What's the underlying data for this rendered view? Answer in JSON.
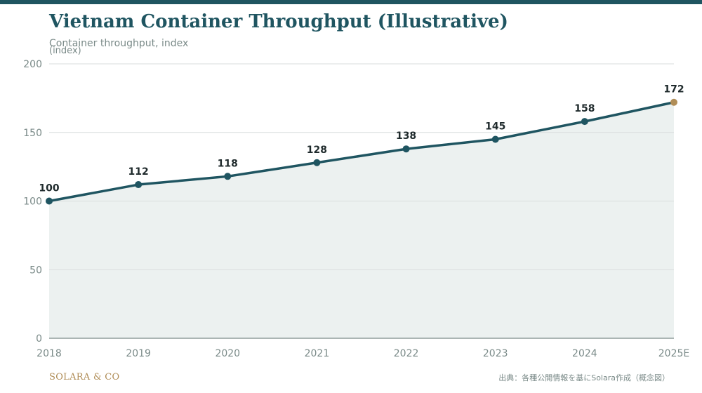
{
  "header": {
    "title": "Vietnam Container Throughput (Illustrative)",
    "subtitle": "Container throughput, index"
  },
  "footer": {
    "brand": "SOLARA & CO",
    "source": "出典：各種公開情報を基にSolara作成（概念図）"
  },
  "colors": {
    "line": "#1f5561",
    "highlight": "#b08d57",
    "area": "#ecf1f0",
    "grid": "#d9dedd",
    "axis": "#7a8a88",
    "label": "#1f2a2c"
  },
  "chart_data": {
    "type": "area",
    "title": "Vietnam Container Throughput (Illustrative)",
    "ylabel": "(index)",
    "xlabel": "",
    "categories": [
      "2018",
      "2019",
      "2020",
      "2021",
      "2022",
      "2023",
      "2024",
      "2025E"
    ],
    "series": [
      {
        "values": [
          100,
          112,
          118,
          128,
          138,
          145,
          158,
          172
        ]
      }
    ],
    "highlight_category": "2025E",
    "ylim": [
      0,
      200
    ],
    "yticks": [
      0,
      50,
      100,
      150,
      200
    ],
    "grid": true,
    "data_labels": true
  }
}
